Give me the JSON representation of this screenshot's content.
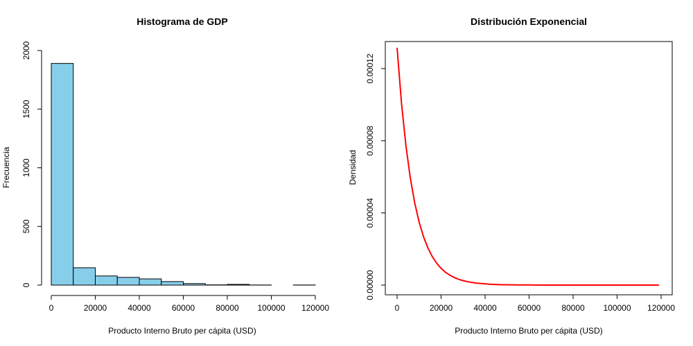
{
  "chart_data": [
    {
      "type": "bar",
      "title": "Histograma de GDP",
      "xlabel": "Producto Interno Bruto per cápita (USD)",
      "ylabel": "Frecuencia",
      "bins": [
        {
          "start": 0,
          "end": 10000,
          "count": 1890
        },
        {
          "start": 10000,
          "end": 20000,
          "count": 148
        },
        {
          "start": 20000,
          "end": 30000,
          "count": 78
        },
        {
          "start": 30000,
          "end": 40000,
          "count": 66
        },
        {
          "start": 40000,
          "end": 50000,
          "count": 53
        },
        {
          "start": 50000,
          "end": 60000,
          "count": 30
        },
        {
          "start": 60000,
          "end": 70000,
          "count": 13
        },
        {
          "start": 70000,
          "end": 80000,
          "count": 2
        },
        {
          "start": 80000,
          "end": 90000,
          "count": 6
        },
        {
          "start": 90000,
          "end": 100000,
          "count": 1
        },
        {
          "start": 100000,
          "end": 110000,
          "count": 0
        },
        {
          "start": 110000,
          "end": 120000,
          "count": 1
        }
      ],
      "xlim": [
        0,
        120000
      ],
      "ylim": [
        0,
        2000
      ],
      "xticks": [
        0,
        20000,
        40000,
        60000,
        80000,
        100000,
        120000
      ],
      "yticks": [
        0,
        500,
        1000,
        1500,
        2000
      ],
      "xtick_labels": [
        "0",
        "20000",
        "40000",
        "60000",
        "80000",
        "100000",
        "120000"
      ],
      "ytick_labels": [
        "0",
        "500",
        "1000",
        "1500",
        "2000"
      ],
      "bar_color": "#87CEEB",
      "grid": false,
      "frame": false
    },
    {
      "type": "line",
      "title": "Distribución Exponencial",
      "xlabel": "Producto Interno Bruto per cápita (USD)",
      "ylabel": "Densidad",
      "series": [
        {
          "x": [
            0,
            2000,
            4000,
            6000,
            8000,
            10000,
            12000,
            14000,
            16000,
            18000,
            20000,
            22000,
            24000,
            26000,
            28000,
            30000,
            32000,
            34000,
            36000,
            38000,
            40000,
            42000,
            44000,
            46000,
            48000,
            50000,
            55000,
            60000,
            65000,
            70000,
            75000,
            80000,
            85000,
            90000,
            95000,
            100000,
            105000,
            110000,
            115000,
            119000
          ],
          "y": [
            0.0001315,
            0.0001009,
            7.74e-05,
            5.94e-05,
            4.56e-05,
            3.5e-05,
            2.68e-05,
            2.06e-05,
            1.58e-05,
            1.21e-05,
            9.3e-06,
            7.1e-06,
            5.5e-06,
            4.2e-06,
            3.2e-06,
            2.5e-06,
            1.9e-06,
            1.5e-06,
            1.1e-06,
            9e-07,
            7e-07,
            5e-07,
            4e-07,
            3e-07,
            2e-07,
            2e-07,
            1e-07,
            1e-07,
            0.0,
            0.0,
            0.0,
            0.0,
            0.0,
            0.0,
            0.0,
            0.0,
            0.0,
            0.0,
            0.0,
            0.0
          ],
          "color": "#FF0000"
        }
      ],
      "xlim": [
        0,
        120000
      ],
      "ylim": [
        0,
        0.00013
      ],
      "xticks": [
        0,
        20000,
        40000,
        60000,
        80000,
        100000,
        120000
      ],
      "yticks": [
        0,
        4e-05,
        8e-05,
        0.00012
      ],
      "xtick_labels": [
        "0",
        "20000",
        "40000",
        "60000",
        "80000",
        "100000",
        "120000"
      ],
      "ytick_labels": [
        "0.00000",
        "0.00004",
        "0.00008",
        "0.00012"
      ],
      "grid": false,
      "frame": true
    }
  ]
}
